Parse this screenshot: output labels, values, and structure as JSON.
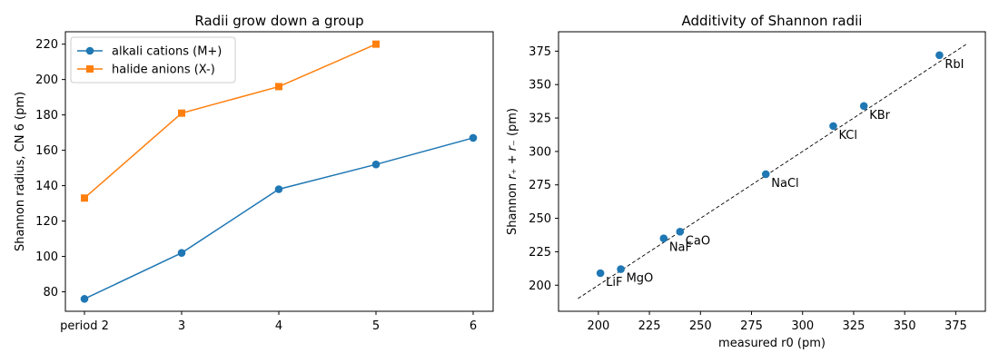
{
  "chart_data": [
    {
      "type": "line",
      "title": "Radii grow down a group",
      "xlabel": "",
      "ylabel": "Shannon radius, CN 6 (pm)",
      "categories": [
        "period 2",
        "3",
        "4",
        "5",
        "6"
      ],
      "series": [
        {
          "name": "alkali cations (M+)",
          "values": [
            76,
            102,
            138,
            152,
            167
          ],
          "color": "#1f77b4",
          "marker": "circle"
        },
        {
          "name": "halide anions (X-)",
          "values": [
            133,
            181,
            196,
            220,
            null
          ],
          "color": "#ff7f0e",
          "marker": "square"
        }
      ],
      "yticks": [
        80,
        100,
        120,
        140,
        160,
        180,
        200,
        220
      ],
      "ylim": [
        69,
        227
      ],
      "grid": false,
      "legend_position": "upper-left"
    },
    {
      "type": "scatter",
      "title": "Additivity of Shannon radii",
      "xlabel": "measured r0 (pm)",
      "ylabel_prefix": "Shannon ",
      "ylabel_math": "r₊ + r₋",
      "ylabel_suffix": "  (pm)",
      "points": [
        {
          "label": "LiF",
          "x": 201,
          "y": 209
        },
        {
          "label": "MgO",
          "x": 211,
          "y": 212
        },
        {
          "label": "NaF",
          "x": 232,
          "y": 235
        },
        {
          "label": "CaO",
          "x": 240,
          "y": 240
        },
        {
          "label": "NaCl",
          "x": 282,
          "y": 283
        },
        {
          "label": "KCl",
          "x": 315,
          "y": 319
        },
        {
          "label": "KBr",
          "x": 330,
          "y": 334
        },
        {
          "label": "RbI",
          "x": 367,
          "y": 372
        }
      ],
      "reference_line": {
        "from": 190,
        "to": 380,
        "style": "dashed",
        "color": "#000000"
      },
      "xticks": [
        200,
        225,
        250,
        275,
        300,
        325,
        350,
        375
      ],
      "yticks": [
        200,
        225,
        250,
        275,
        300,
        325,
        350,
        375
      ],
      "xlim": [
        180.5,
        389.5
      ],
      "ylim": [
        180.5,
        389.5
      ],
      "point_color": "#1f77b4",
      "grid": false
    }
  ]
}
